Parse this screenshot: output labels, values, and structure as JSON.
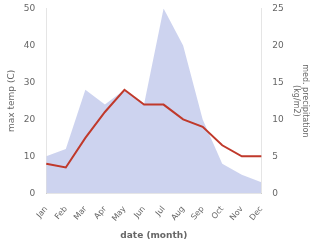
{
  "chart_data": {
    "type": "line",
    "categories": [
      "Jan",
      "Feb",
      "Mar",
      "Apr",
      "May",
      "Jun",
      "Jul",
      "Aug",
      "Sep",
      "Oct",
      "Nov",
      "Dec"
    ],
    "series": [
      {
        "type": "area",
        "axis": "y2",
        "color": "#b8c0e8",
        "values": [
          5,
          6,
          14,
          12,
          14,
          12,
          25,
          20,
          10,
          4,
          2.5,
          1.5
        ]
      },
      {
        "type": "line",
        "color": "#c0392b",
        "values": [
          8,
          7,
          15,
          22,
          28,
          24,
          24,
          20,
          18,
          13,
          10,
          10
        ]
      }
    ],
    "xlabel": "date (month)",
    "ylabel": "max temp (C)",
    "y2label": "med. precipitation\n(kg/m2)",
    "ylim": [
      0,
      50
    ],
    "yticks": [
      0,
      10,
      20,
      30,
      40,
      50
    ],
    "y2lim": [
      0,
      25
    ],
    "y2ticks": [
      0,
      5,
      10,
      15,
      20,
      25
    ],
    "grid": false
  }
}
